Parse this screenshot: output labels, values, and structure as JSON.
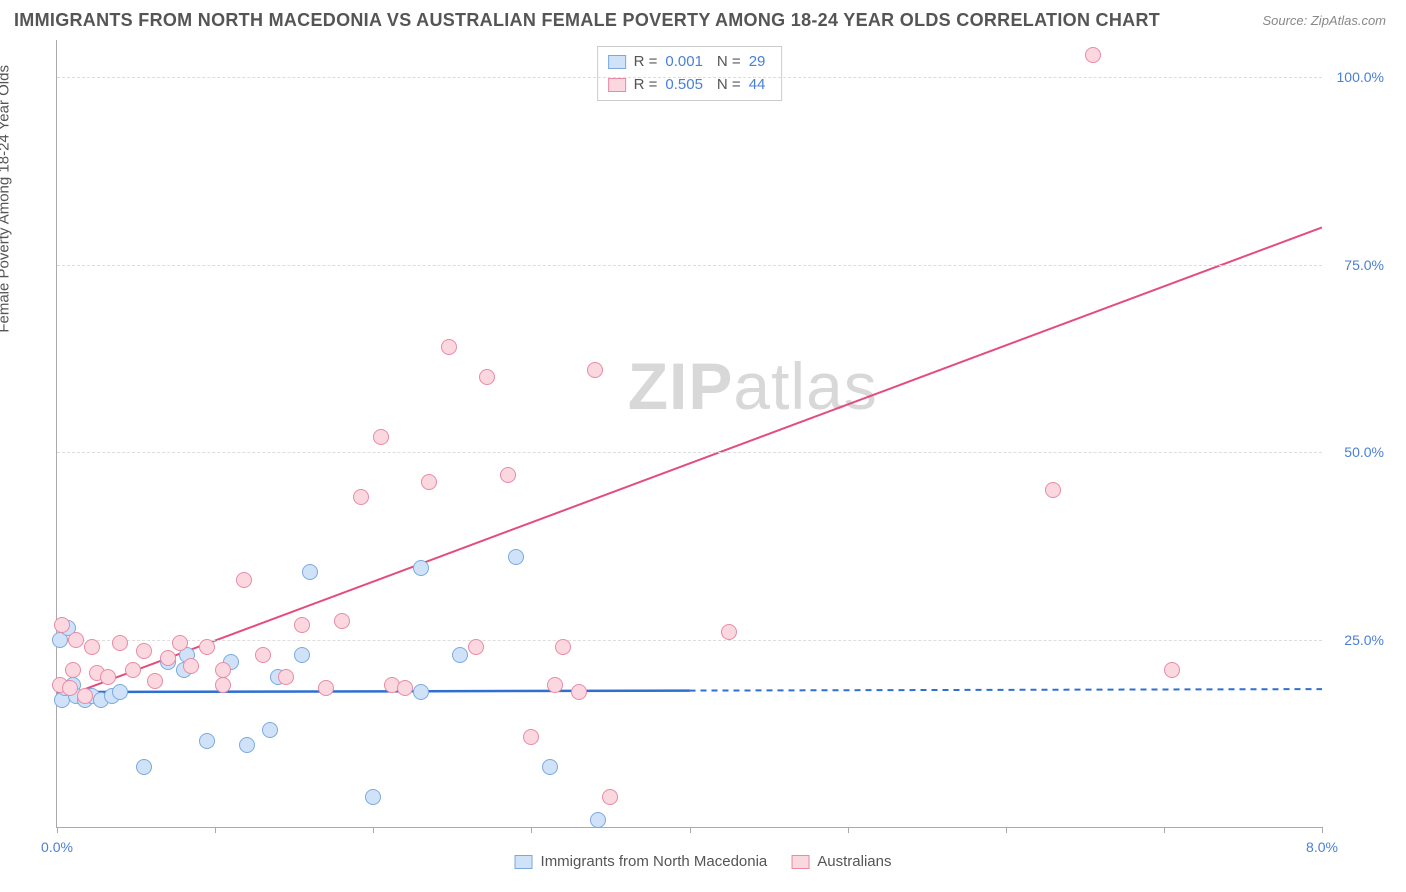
{
  "title": "IMMIGRANTS FROM NORTH MACEDONIA VS AUSTRALIAN FEMALE POVERTY AMONG 18-24 YEAR OLDS CORRELATION CHART",
  "source": "Source: ZipAtlas.com",
  "ylabel": "Female Poverty Among 18-24 Year Olds",
  "watermark_a": "ZIP",
  "watermark_b": "atlas",
  "chart": {
    "type": "scatter",
    "xlim": [
      0,
      8
    ],
    "ylim": [
      0,
      105
    ],
    "xticks": [
      0,
      1,
      2,
      3,
      4,
      5,
      6,
      7,
      8
    ],
    "xtick_labels": {
      "0": "0.0%",
      "8": "8.0%"
    },
    "yticks": [
      25,
      50,
      75,
      100
    ],
    "ytick_labels": [
      "25.0%",
      "50.0%",
      "75.0%",
      "100.0%"
    ],
    "grid_color": "#e8e8e8",
    "background_color": "#ffffff",
    "marker_radius": 8,
    "series": [
      {
        "key": "macedonia",
        "label": "Immigrants from North Macedonia",
        "fill": "#cfe2f8",
        "stroke": "#7aa9e0",
        "line_color": "#2f6fd1",
        "r_label": "R =",
        "r_value": "0.001",
        "n_label": "N =",
        "n_value": "29",
        "trend": {
          "x1": 0,
          "y1": 18,
          "x2": 4.0,
          "y2": 18.2,
          "extend_to_x": 8,
          "dash_after": 4.0
        },
        "points": [
          [
            0.02,
            25
          ],
          [
            0.03,
            17
          ],
          [
            0.07,
            26.5
          ],
          [
            0.1,
            19
          ],
          [
            0.12,
            17.5
          ],
          [
            0.18,
            17
          ],
          [
            0.22,
            17.5
          ],
          [
            0.28,
            17
          ],
          [
            0.35,
            17.5
          ],
          [
            0.4,
            18
          ],
          [
            0.05,
            18.5
          ],
          [
            0.55,
            8
          ],
          [
            0.7,
            22
          ],
          [
            0.8,
            21
          ],
          [
            0.82,
            23
          ],
          [
            0.95,
            11.5
          ],
          [
            1.1,
            22
          ],
          [
            1.2,
            11
          ],
          [
            1.35,
            13
          ],
          [
            1.4,
            20
          ],
          [
            1.55,
            23
          ],
          [
            1.6,
            34
          ],
          [
            2.0,
            4
          ],
          [
            2.3,
            34.5
          ],
          [
            2.3,
            18
          ],
          [
            2.55,
            23
          ],
          [
            2.9,
            36
          ],
          [
            3.12,
            8
          ],
          [
            3.42,
            1
          ]
        ]
      },
      {
        "key": "australians",
        "label": "Australians",
        "fill": "#fbd7e0",
        "stroke": "#e98aa4",
        "line_color": "#e24d7c",
        "r_label": "R =",
        "r_value": "0.505",
        "n_label": "N =",
        "n_value": "44",
        "trend": {
          "x1": 0,
          "y1": 17,
          "x2": 8,
          "y2": 80
        },
        "points": [
          [
            0.02,
            19
          ],
          [
            0.03,
            27
          ],
          [
            0.08,
            18.5
          ],
          [
            0.1,
            21
          ],
          [
            0.12,
            25
          ],
          [
            0.18,
            17.5
          ],
          [
            0.22,
            24
          ],
          [
            0.25,
            20.5
          ],
          [
            0.32,
            20
          ],
          [
            0.4,
            24.5
          ],
          [
            0.48,
            21
          ],
          [
            0.55,
            23.5
          ],
          [
            0.62,
            19.5
          ],
          [
            0.7,
            22.5
          ],
          [
            0.78,
            24.5
          ],
          [
            0.85,
            21.5
          ],
          [
            0.95,
            24
          ],
          [
            1.05,
            19
          ],
          [
            1.18,
            33
          ],
          [
            1.3,
            23
          ],
          [
            1.45,
            20
          ],
          [
            1.55,
            27
          ],
          [
            1.7,
            18.5
          ],
          [
            1.8,
            27.5
          ],
          [
            1.92,
            44
          ],
          [
            2.05,
            52
          ],
          [
            2.12,
            19
          ],
          [
            2.2,
            18.5
          ],
          [
            2.35,
            46
          ],
          [
            2.48,
            64
          ],
          [
            2.65,
            24
          ],
          [
            2.72,
            60
          ],
          [
            2.85,
            47
          ],
          [
            3.0,
            12
          ],
          [
            3.15,
            19
          ],
          [
            3.2,
            24
          ],
          [
            3.3,
            18
          ],
          [
            3.4,
            61
          ],
          [
            3.5,
            4
          ],
          [
            4.25,
            26
          ],
          [
            6.3,
            45
          ],
          [
            6.55,
            103
          ],
          [
            7.05,
            21
          ],
          [
            1.05,
            21
          ]
        ]
      }
    ]
  },
  "legend_top": [
    {
      "series": "macedonia"
    },
    {
      "series": "australians"
    }
  ],
  "legend_bottom": [
    {
      "series": "macedonia"
    },
    {
      "series": "australians"
    }
  ]
}
